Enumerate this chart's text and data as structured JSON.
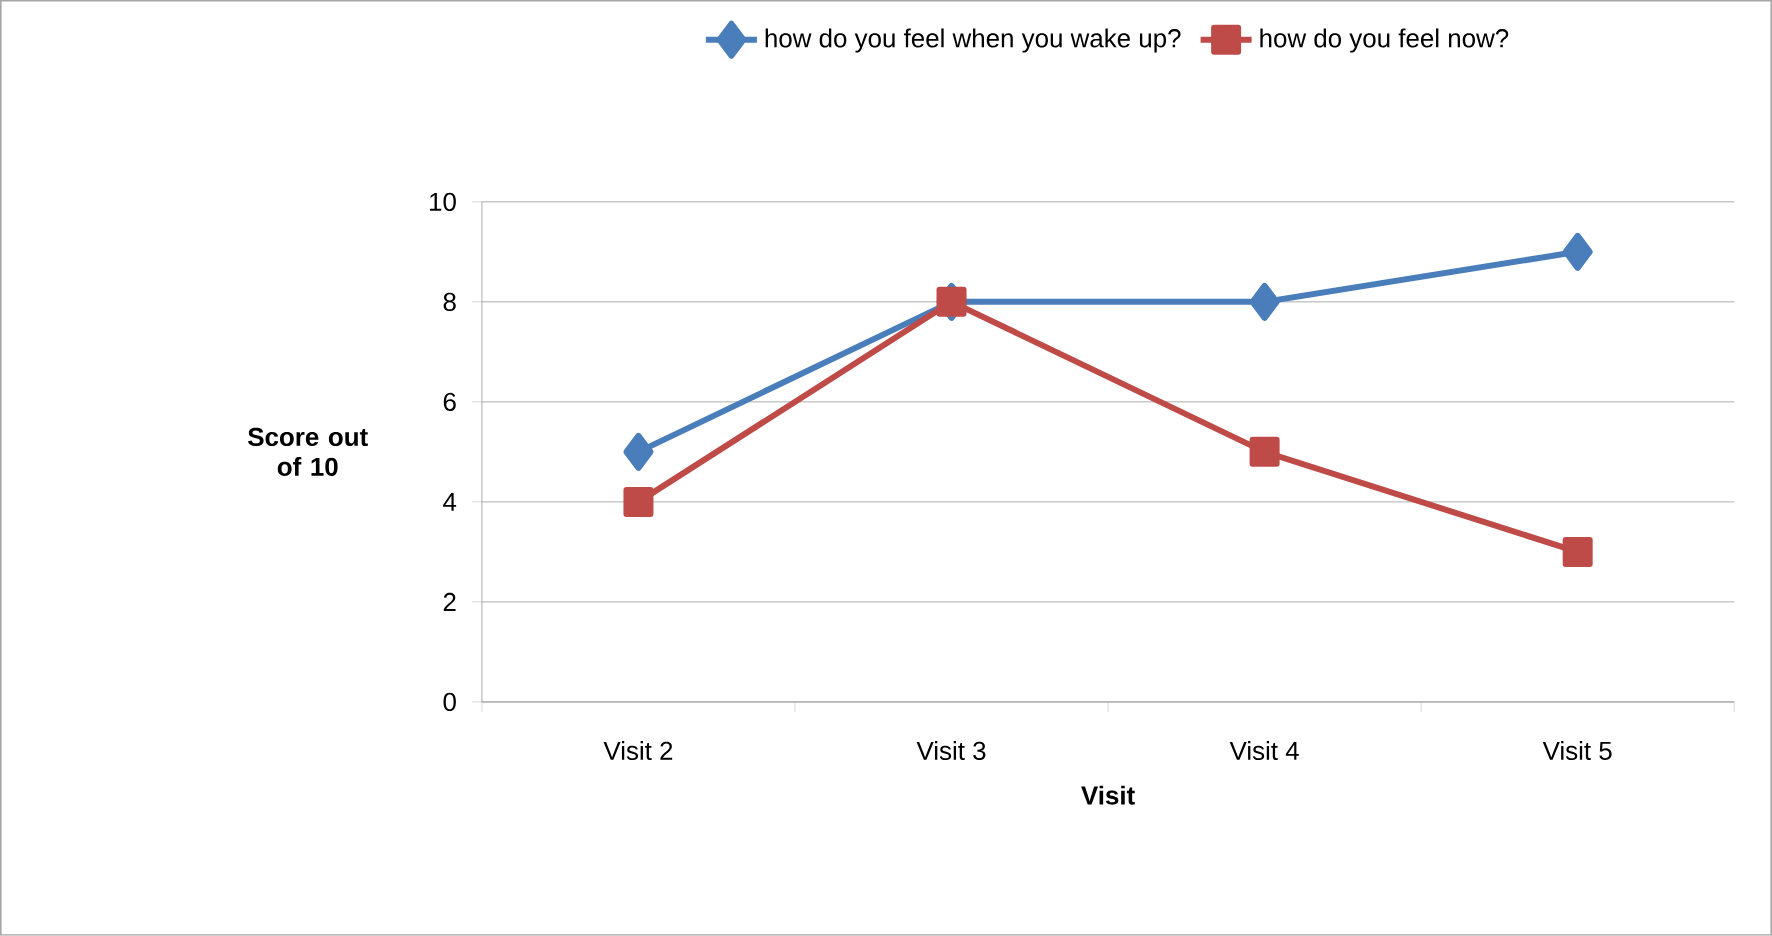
{
  "chart_data": {
    "type": "line",
    "xlabel": "Visit",
    "ylabel": "Score out of 10",
    "categories": [
      "Visit 2",
      "Visit 3",
      "Visit 4",
      "Visit 5"
    ],
    "series": [
      {
        "name": "how do you feel when you wake up?",
        "color": "#4a7ebb",
        "marker": "diamond",
        "values": [
          5,
          8,
          8,
          9
        ]
      },
      {
        "name": "how do you feel now?",
        "color": "#be4b48",
        "marker": "square",
        "values": [
          4,
          8,
          5,
          3
        ]
      }
    ],
    "ylim": [
      0,
      10
    ],
    "yticks": [
      0,
      2,
      4,
      6,
      8,
      10
    ],
    "grid": "y",
    "legend": "top",
    "line_style": "solid"
  }
}
